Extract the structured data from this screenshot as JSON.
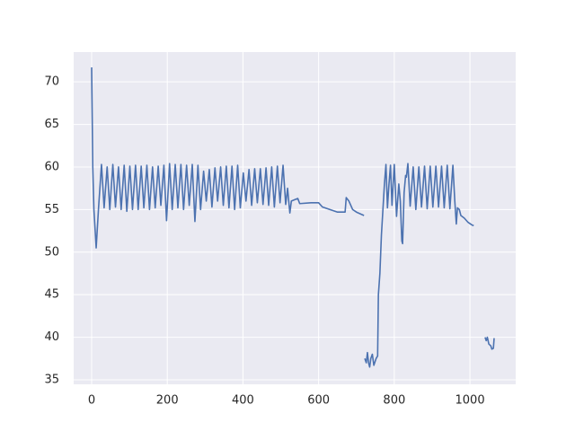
{
  "chart_data": {
    "type": "line",
    "color": "#4c72b0",
    "grid": true,
    "x": [
      0,
      3,
      6,
      12,
      18,
      26,
      33,
      41,
      48,
      56,
      63,
      71,
      78,
      86,
      93,
      101,
      108,
      116,
      123,
      131,
      138,
      146,
      153,
      161,
      168,
      176,
      183,
      191,
      198,
      206,
      213,
      221,
      228,
      236,
      243,
      251,
      258,
      266,
      273,
      281,
      288,
      296,
      303,
      311,
      318,
      326,
      333,
      341,
      348,
      356,
      363,
      371,
      378,
      386,
      393,
      401,
      408,
      416,
      423,
      431,
      438,
      446,
      453,
      461,
      468,
      476,
      483,
      491,
      498,
      506,
      513,
      518,
      521,
      524,
      528,
      545,
      550,
      580,
      600,
      610,
      630,
      650,
      670,
      673,
      680,
      690,
      700,
      720,
      721,
      722,
      726,
      729,
      732,
      735,
      738,
      742,
      746,
      752,
      756,
      758,
      762,
      766,
      770,
      774,
      778,
      782,
      786,
      790,
      794,
      800,
      806,
      812,
      816,
      820,
      822,
      826,
      830,
      832,
      836,
      842,
      850,
      857,
      865,
      872,
      880,
      887,
      895,
      902,
      910,
      917,
      925,
      932,
      940,
      947,
      955,
      960,
      964,
      967,
      972,
      976,
      985,
      995,
      1005,
      1010,
      1020,
      1040,
      1043,
      1046,
      1050,
      1055,
      1058,
      1062,
      1064
    ],
    "values": [
      71.7,
      60,
      55,
      50.5,
      55,
      60.3,
      55.2,
      60,
      55,
      60.3,
      55.3,
      60,
      55,
      60.2,
      54.8,
      60.1,
      55,
      60.2,
      55,
      60.1,
      55.2,
      60.2,
      55,
      60,
      55.2,
      60.1,
      55.5,
      60.2,
      53.7,
      60.4,
      55,
      60.3,
      55.2,
      60.3,
      55,
      60.2,
      55.5,
      60.3,
      53.6,
      60.2,
      55,
      59.5,
      56,
      59.7,
      55.3,
      59.9,
      56,
      60,
      55.5,
      60.1,
      55.2,
      60.1,
      55,
      60.2,
      55.2,
      59.3,
      56,
      59.7,
      55.5,
      59.8,
      55.8,
      59.8,
      55.6,
      59.9,
      55.5,
      60,
      55.3,
      60.1,
      55.8,
      60.2,
      55.6,
      57.5,
      56,
      54.6,
      56,
      56.3,
      55.7,
      55.8,
      55.8,
      55.3,
      55,
      54.7,
      54.7,
      56.4,
      56,
      55,
      54.7,
      54.3,
      null,
      37.5,
      37,
      38.2,
      37,
      36.5,
      37.5,
      38,
      36.7,
      37.5,
      37.8,
      45,
      47.5,
      52,
      55,
      58,
      60.3,
      55.2,
      58,
      60.2,
      55.5,
      60.3,
      54.2,
      58,
      56,
      51.3,
      51,
      57,
      59,
      58.8,
      60.4,
      55.4,
      60,
      55,
      60,
      55.3,
      60.1,
      55.1,
      60.1,
      55.3,
      60.1,
      55.3,
      60.1,
      55.2,
      60.2,
      55.1,
      60.2,
      56,
      53.3,
      55.2,
      55,
      54.3,
      54,
      53.5,
      53.2,
      53.1,
      null,
      40,
      39.6,
      40,
      39.2,
      39,
      38.6,
      38.7,
      39.9
    ],
    "xlim": [
      -47.5,
      1121
    ],
    "ylim": [
      34.47,
      73.5
    ],
    "xticks": [
      0,
      200,
      400,
      600,
      800,
      1000
    ],
    "yticks": [
      35,
      40,
      45,
      50,
      55,
      60,
      65,
      70
    ]
  }
}
